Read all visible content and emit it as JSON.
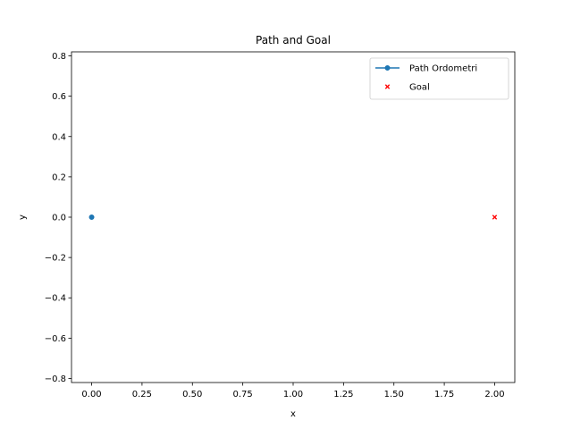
{
  "chart_data": {
    "type": "scatter",
    "title": "Path and Goal",
    "xlabel": "x",
    "ylabel": "y",
    "xlim": [
      -0.1,
      2.1
    ],
    "ylim": [
      -0.82,
      0.82
    ],
    "xticks": [
      0.0,
      0.25,
      0.5,
      0.75,
      1.0,
      1.25,
      1.5,
      1.75,
      2.0
    ],
    "xtick_labels": [
      "0.00",
      "0.25",
      "0.50",
      "0.75",
      "1.00",
      "1.25",
      "1.50",
      "1.75",
      "2.00"
    ],
    "yticks": [
      -0.8,
      -0.6,
      -0.4,
      -0.2,
      0.0,
      0.2,
      0.4,
      0.6,
      0.8
    ],
    "ytick_labels": [
      "−0.8",
      "−0.6",
      "−0.4",
      "−0.2",
      "0.0",
      "0.2",
      "0.4",
      "0.6",
      "0.8"
    ],
    "grid": false,
    "legend_position": "top-right",
    "series": [
      {
        "name": "Path Ordometri",
        "kind": "line-marker",
        "marker": "circle",
        "color": "#1f77b4",
        "points": [
          {
            "x": 0.0,
            "y": 0.0
          }
        ]
      },
      {
        "name": "Goal",
        "kind": "marker",
        "marker": "x",
        "color": "#ff0000",
        "points": [
          {
            "x": 2.0,
            "y": 0.0
          }
        ]
      }
    ]
  }
}
